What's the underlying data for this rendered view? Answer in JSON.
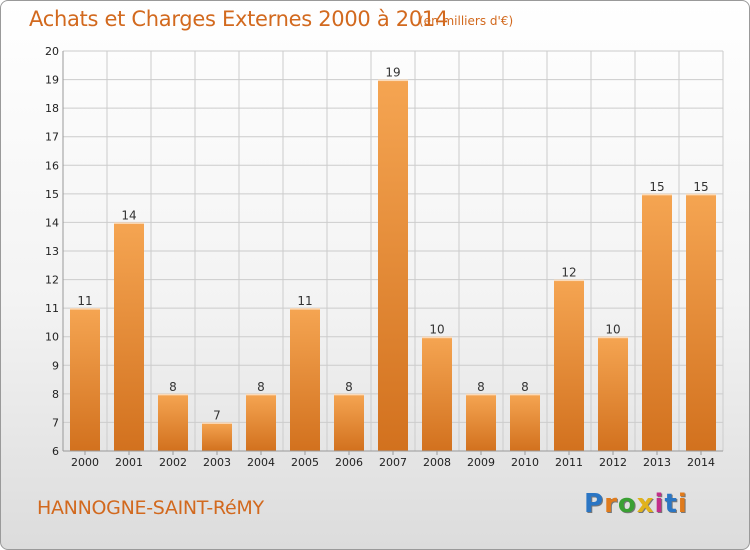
{
  "header": {
    "title": "Achats et Charges Externes 2000 à 2014",
    "subtitle": "(en milliers d'€)"
  },
  "footer": {
    "town": "HANNOGNE-SAINT-RéMY",
    "logo_text": "Proxiti",
    "logo_colors": [
      "#2b76c4",
      "#e07b1c",
      "#3aa033",
      "#e0b21c",
      "#c22f8a",
      "#2b76c4",
      "#e07b1c"
    ]
  },
  "colors": {
    "bar_top": "#f5a552",
    "bar_bottom": "#d2711e",
    "grid": "#cccccc",
    "axis": "#999999"
  },
  "chart_data": {
    "type": "bar",
    "categories": [
      "2000",
      "2001",
      "2002",
      "2003",
      "2004",
      "2005",
      "2006",
      "2007",
      "2008",
      "2009",
      "2010",
      "2011",
      "2012",
      "2013",
      "2014"
    ],
    "values": [
      11,
      14,
      8,
      7,
      8,
      11,
      8,
      19,
      10,
      8,
      8,
      12,
      10,
      15,
      15
    ],
    "title": "Achats et Charges Externes 2000 à 2014",
    "subtitle": "(en milliers d'€)",
    "xlabel": "",
    "ylabel": "",
    "ylim": [
      6,
      20
    ],
    "yticks": [
      6,
      7,
      8,
      9,
      10,
      11,
      12,
      13,
      14,
      15,
      16,
      17,
      18,
      19,
      20
    ],
    "grid": true,
    "data_labels": true
  }
}
